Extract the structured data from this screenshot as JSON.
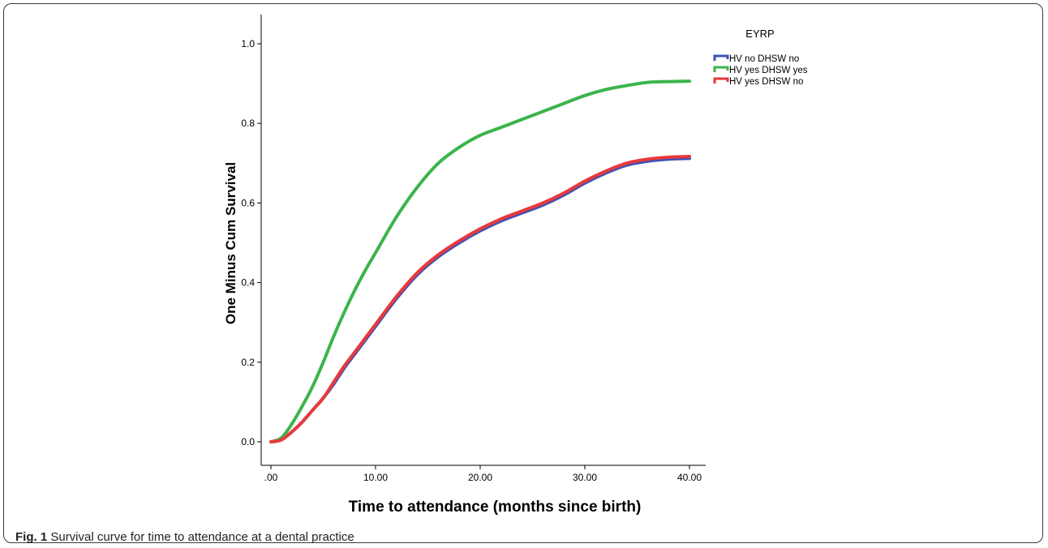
{
  "chart_data": {
    "type": "line",
    "xlabel": "Time to attendance (months since birth)",
    "ylabel": "One Minus Cum Survival",
    "xlim": [
      0,
      40
    ],
    "ylim": [
      0,
      1.0
    ],
    "x_ticks": [
      ".00",
      "10.00",
      "20.00",
      "30.00",
      "40.00"
    ],
    "x_tick_values": [
      0,
      10,
      20,
      30,
      40
    ],
    "y_ticks": [
      "0.0",
      "0.2",
      "0.4",
      "0.6",
      "0.8",
      "1.0"
    ],
    "y_tick_values": [
      0,
      0.2,
      0.4,
      0.6,
      0.8,
      1.0
    ],
    "grid": false,
    "legend": {
      "title": "EYRP",
      "placement": "right"
    },
    "series": [
      {
        "name": "HV no DHSW no",
        "color": "#3f51b5",
        "x": [
          0,
          1,
          2,
          3,
          4,
          5,
          6,
          7,
          8,
          9,
          10,
          12,
          14,
          16,
          18,
          20,
          22,
          24,
          26,
          28,
          30,
          32,
          34,
          36,
          38,
          40
        ],
        "y": [
          0,
          0.005,
          0.025,
          0.05,
          0.08,
          0.11,
          0.145,
          0.185,
          0.22,
          0.255,
          0.29,
          0.36,
          0.42,
          0.465,
          0.5,
          0.53,
          0.555,
          0.575,
          0.595,
          0.62,
          0.65,
          0.675,
          0.695,
          0.705,
          0.71,
          0.712
        ]
      },
      {
        "name": "HV yes DHSW yes",
        "color": "#3cb44b",
        "x": [
          0,
          1,
          2,
          3,
          4,
          5,
          6,
          7,
          8,
          9,
          10,
          12,
          14,
          16,
          18,
          20,
          22,
          24,
          26,
          28,
          30,
          32,
          34,
          36,
          38,
          40
        ],
        "y": [
          0,
          0.01,
          0.045,
          0.09,
          0.14,
          0.2,
          0.265,
          0.325,
          0.38,
          0.43,
          0.475,
          0.565,
          0.64,
          0.7,
          0.74,
          0.77,
          0.79,
          0.81,
          0.83,
          0.85,
          0.87,
          0.885,
          0.895,
          0.903,
          0.905,
          0.906
        ]
      },
      {
        "name": "HV yes DHSW no",
        "color": "#e8393c",
        "x": [
          0,
          1,
          2,
          3,
          4,
          5,
          6,
          7,
          8,
          9,
          10,
          12,
          14,
          16,
          18,
          20,
          22,
          24,
          26,
          28,
          30,
          32,
          34,
          36,
          38,
          40
        ],
        "y": [
          0,
          0.005,
          0.025,
          0.05,
          0.08,
          0.11,
          0.15,
          0.19,
          0.225,
          0.26,
          0.295,
          0.365,
          0.425,
          0.47,
          0.505,
          0.535,
          0.56,
          0.58,
          0.6,
          0.625,
          0.655,
          0.68,
          0.7,
          0.71,
          0.715,
          0.717
        ]
      }
    ]
  },
  "caption": {
    "label": "Fig. 1",
    "text": "Survival curve for time to attendance at a dental practice"
  }
}
